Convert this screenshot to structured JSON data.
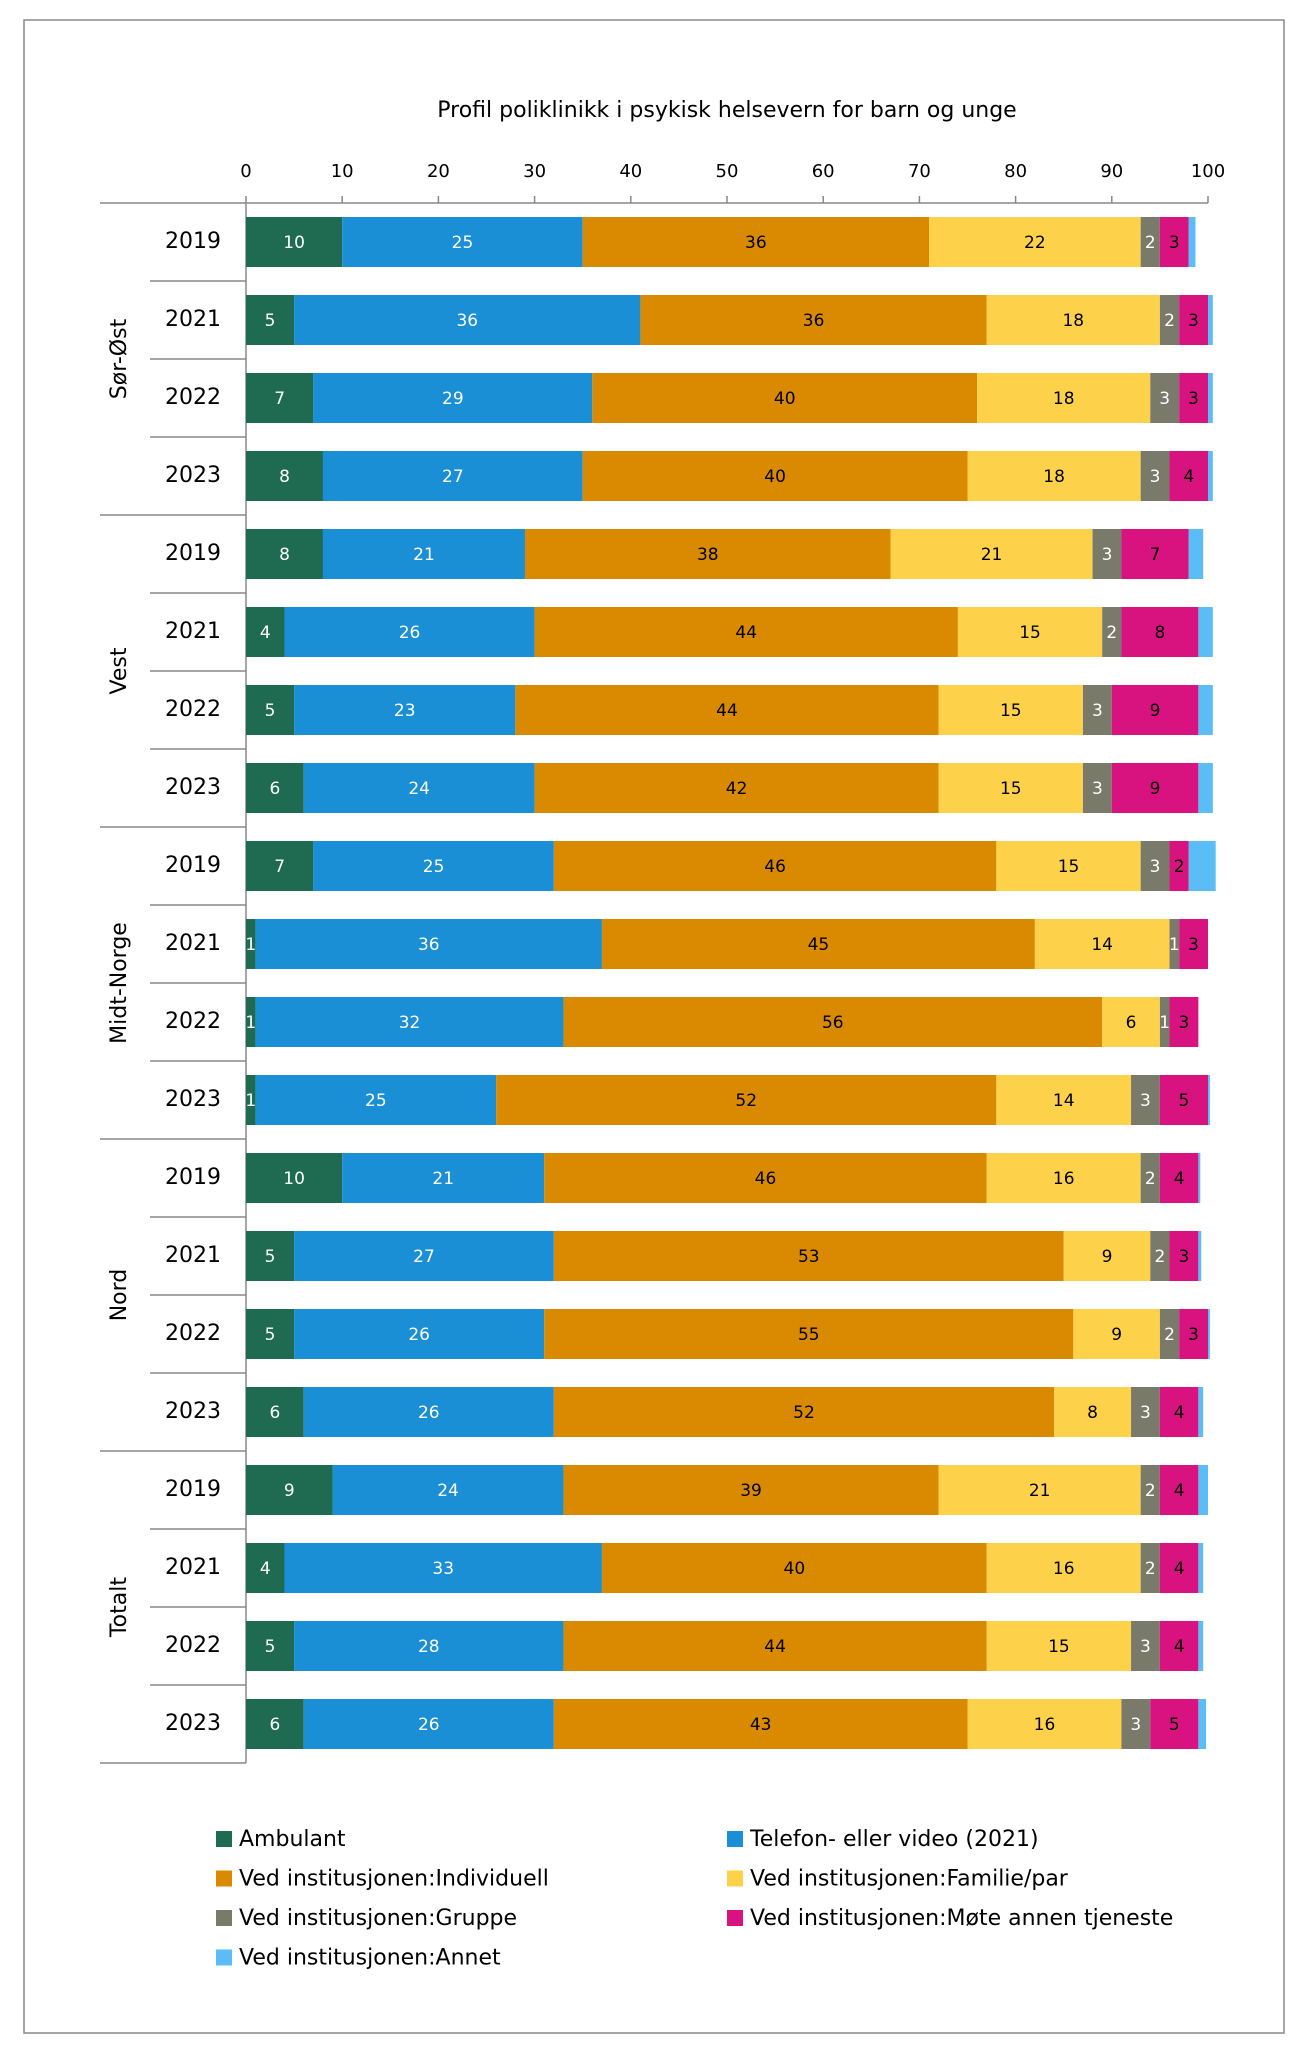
{
  "chart_data": {
    "type": "stacked-bar-horizontal",
    "title": "Profil poliklinikk i psykisk helsevern for barn og unge",
    "groups": [
      {
        "name": "Sør-Øst",
        "categories": [
          "2019",
          "2021",
          "2022",
          "2023"
        ]
      },
      {
        "name": "Vest",
        "categories": [
          "2019",
          "2021",
          "2022",
          "2023"
        ]
      },
      {
        "name": "Midt-Norge",
        "categories": [
          "2019",
          "2021",
          "2022",
          "2023"
        ]
      },
      {
        "name": "Nord",
        "categories": [
          "2019",
          "2021",
          "2022",
          "2023"
        ]
      },
      {
        "name": "Totalt",
        "categories": [
          "2019",
          "2021",
          "2022",
          "2023"
        ]
      }
    ],
    "xlim": [
      0,
      100
    ],
    "xticks": [
      0,
      10,
      20,
      30,
      40,
      50,
      60,
      70,
      80,
      90,
      100
    ],
    "series": [
      {
        "name": "Ambulant",
        "color": "#1e6b52",
        "label_color": "#ffffff",
        "values": [
          10,
          5,
          7,
          8,
          8,
          4,
          5,
          6,
          7,
          1,
          1,
          1,
          10,
          5,
          5,
          6,
          9,
          4,
          5,
          6
        ]
      },
      {
        "name": "Telefon- eller video (2021)",
        "color": "#1a8fd6",
        "label_color": "#ffffff",
        "values": [
          25,
          36,
          29,
          27,
          21,
          26,
          23,
          24,
          25,
          36,
          32,
          25,
          21,
          27,
          26,
          26,
          24,
          33,
          28,
          26
        ]
      },
      {
        "name": "Ved institusjonen:Individuell",
        "color": "#d98a00",
        "label_color": "#000000",
        "values": [
          36,
          36,
          40,
          40,
          38,
          44,
          44,
          42,
          46,
          45,
          56,
          52,
          46,
          53,
          55,
          52,
          39,
          40,
          44,
          43
        ]
      },
      {
        "name": "Ved institusjonen:Familie/par",
        "color": "#fdd24a",
        "label_color": "#000000",
        "values": [
          22,
          18,
          18,
          18,
          21,
          15,
          15,
          15,
          15,
          14,
          6,
          14,
          16,
          9,
          9,
          8,
          21,
          16,
          15,
          16
        ]
      },
      {
        "name": "Ved institusjonen:Gruppe",
        "color": "#7a7a6a",
        "label_color": "#ffffff",
        "values": [
          2,
          2,
          3,
          3,
          3,
          2,
          3,
          3,
          3,
          1,
          1,
          3,
          2,
          2,
          2,
          3,
          2,
          2,
          3,
          3
        ]
      },
      {
        "name": "Ved institusjonen:Møte annen tjeneste",
        "color": "#d8127f",
        "label_color": "#000000",
        "values": [
          3,
          3,
          3,
          4,
          7,
          8,
          9,
          9,
          2,
          3,
          3,
          5,
          4,
          3,
          3,
          4,
          4,
          4,
          4,
          5
        ]
      },
      {
        "name": "Ved institusjonen:Annet",
        "color": "#5bbdf5",
        "show_labels": false,
        "values": [
          0.7,
          0.5,
          0.5,
          0.5,
          1.5,
          1.5,
          1.5,
          1.5,
          2.8,
          0,
          0,
          0.2,
          0.2,
          0.3,
          0.2,
          0.5,
          1,
          0.5,
          0.5,
          0.8
        ]
      }
    ]
  }
}
